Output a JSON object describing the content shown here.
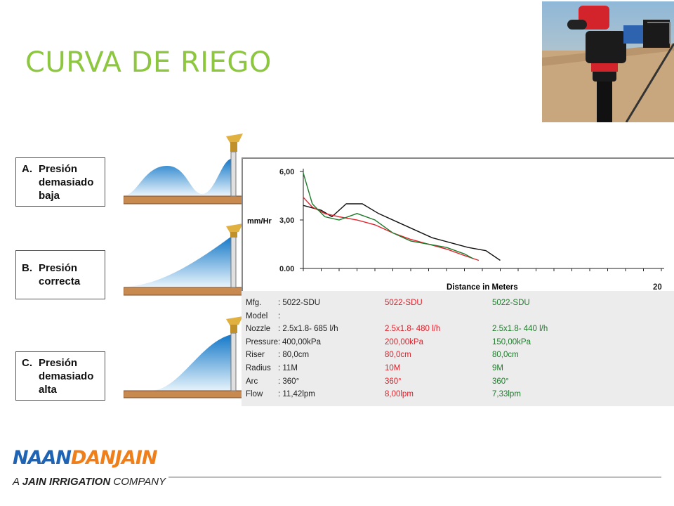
{
  "title": "CURVA DE RIEGO",
  "pressure_boxes": [
    {
      "letter": "A.",
      "lines": [
        "Presión",
        "demasiado",
        "baja"
      ]
    },
    {
      "letter": "B.",
      "lines": [
        "Presión",
        "correcta"
      ]
    },
    {
      "letter": "C.",
      "lines": [
        "Presión",
        "demasiado",
        "alta"
      ]
    }
  ],
  "specs": {
    "labels": [
      "Mfg.",
      "Model",
      "Nozzle",
      "Pressure:",
      "Riser",
      "Radius",
      "Arc",
      "Flow"
    ],
    "col1": [
      ": 5022-SDU",
      ":",
      ": 2.5x1.8- 685 l/h",
      "400,00kPa",
      ": 80,0cm",
      ": 11M",
      ": 360°",
      ": 11,42lpm"
    ],
    "col2": [
      "5022-SDU",
      "",
      "2.5x1.8- 480 l/h",
      "200,00kPa",
      "80,0cm",
      "10M",
      "360°",
      "8,00lpm"
    ],
    "col3": [
      "5022-SDU",
      "",
      "2.5x1.8- 440 l/h",
      "150,00kPa",
      "80,0cm",
      "9M",
      "360°",
      "7,33lpm"
    ]
  },
  "logo": {
    "naan": "NAAN",
    "dan": "DAN",
    "jain": "JAIN",
    "tag_pre": "A ",
    "tag_bold": "JAIN IRRIGATION",
    "tag_post": " COMPANY"
  },
  "colors": {
    "title": "#8dc63f",
    "series_black": "#111111",
    "series_red": "#e0202a",
    "series_green": "#1f7a2c",
    "naan": "#1e63b4",
    "dan": "#f07f1a",
    "jain": "#f07f1a"
  },
  "chart_data": {
    "type": "line",
    "xlabel": "Distance in Meters",
    "ylabel": "mm/Hr",
    "x_tick_labels": [
      "20"
    ],
    "y_tick_labels": [
      "6,00",
      "3,00",
      "0.00"
    ],
    "xlim": [
      0,
      20
    ],
    "ylim": [
      0,
      6
    ],
    "series": [
      {
        "color": "black",
        "x": [
          0,
          1,
          1.6,
          2.4,
          3.3,
          4.2,
          5.2,
          6.2,
          7.2,
          8.2,
          9.2,
          10.2,
          11.0
        ],
        "y": [
          3.9,
          3.6,
          3.2,
          4.0,
          4.0,
          3.4,
          2.9,
          2.4,
          1.9,
          1.6,
          1.3,
          1.1,
          0.5
        ]
      },
      {
        "color": "red",
        "x": [
          0,
          0.5,
          1.2,
          2.0,
          3.0,
          4.0,
          5.0,
          6.0,
          7.0,
          8.0,
          9.0,
          9.8
        ],
        "y": [
          4.4,
          3.8,
          3.4,
          3.2,
          3.0,
          2.7,
          2.2,
          1.8,
          1.5,
          1.2,
          0.8,
          0.5
        ]
      },
      {
        "color": "green",
        "x": [
          0,
          0.5,
          1.2,
          2.0,
          3.0,
          4.0,
          5.0,
          6.0,
          7.0,
          8.0,
          9.0,
          9.5
        ],
        "y": [
          5.9,
          4.0,
          3.2,
          3.0,
          3.4,
          3.0,
          2.2,
          1.7,
          1.5,
          1.3,
          0.9,
          0.6
        ]
      }
    ]
  }
}
